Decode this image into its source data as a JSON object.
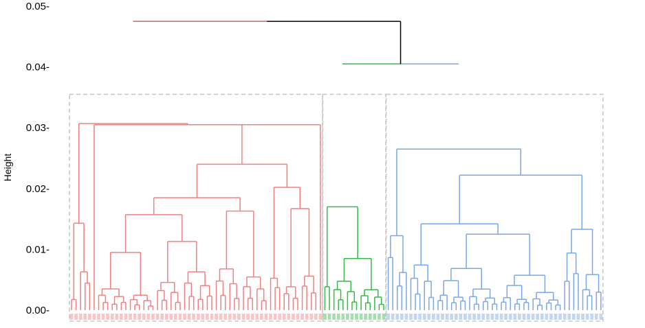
{
  "chart_data": {
    "type": "dendrogram",
    "ylabel": "Height",
    "ylim": [
      0,
      0.05
    ],
    "yticks": [
      {
        "value": 0.0,
        "label": "0.00-"
      },
      {
        "value": 0.01,
        "label": "0.01-"
      },
      {
        "value": 0.02,
        "label": "0.02-"
      },
      {
        "value": 0.03,
        "label": "0.03-"
      },
      {
        "value": 0.04,
        "label": "0.04-"
      },
      {
        "value": 0.05,
        "label": "0.05-"
      }
    ],
    "grid": false,
    "leaf_count": 127,
    "cut_height": 0.0355,
    "root_height": 0.0475,
    "colors": {
      "cluster_1": "#f08080",
      "cluster_2": "#33bb44",
      "cluster_3": "#7aa7e8",
      "root": "#000000",
      "rect": "#c8c8c8"
    },
    "clusters": [
      {
        "name": "cluster_1",
        "color": "#f08080",
        "leaves": 62,
        "height": 0.0475
      },
      {
        "name": "cluster_2",
        "color": "#33bb44",
        "leaves": 14,
        "height": 0.0405
      },
      {
        "name": "cluster_3",
        "color": "#7aa7e8",
        "leaves": 51,
        "height": 0.0405
      }
    ],
    "merges": [
      {
        "name": "root",
        "left": "cluster_1",
        "right": "cluster_2+3",
        "height": 0.0475
      },
      {
        "name": "cluster_2+3",
        "left": "cluster_2",
        "right": "cluster_3",
        "height": 0.0405
      }
    ]
  }
}
